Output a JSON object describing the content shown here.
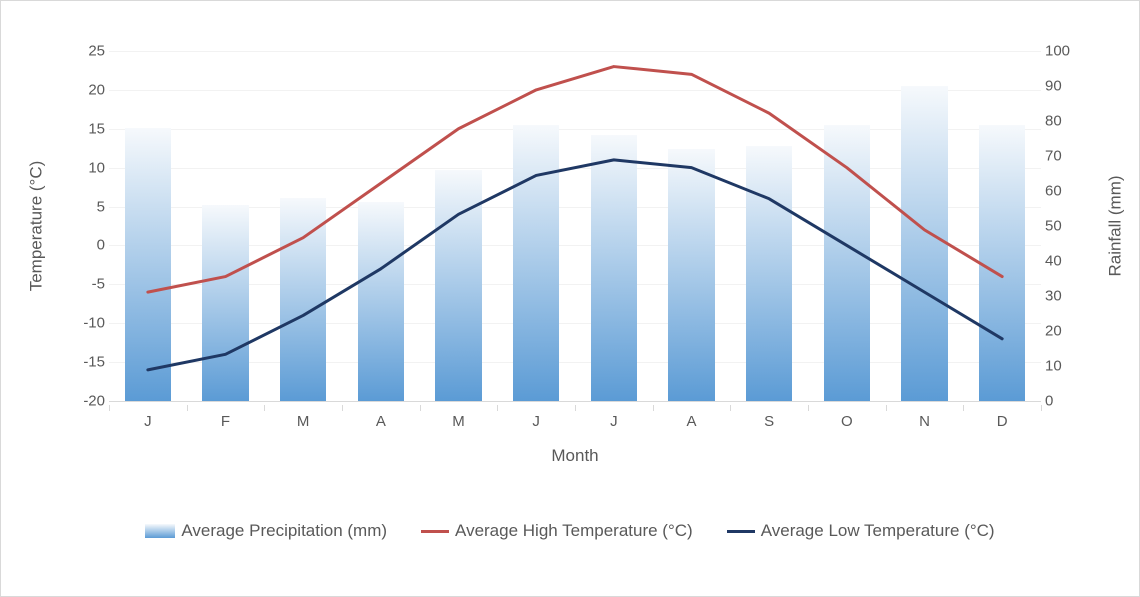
{
  "chart": {
    "type": "combo-bar-line",
    "background_color": "#ffffff",
    "border_color": "#d9d9d9",
    "grid_color": "#f2f2f2",
    "axis_line_color": "#d9d9d9",
    "font_family": "Segoe UI",
    "tick_fontsize": 15,
    "axis_title_fontsize": 17,
    "tick_color": "#595959",
    "x": {
      "title": "Month",
      "categories": [
        "J",
        "F",
        "M",
        "A",
        "M",
        "J",
        "J",
        "A",
        "S",
        "O",
        "N",
        "D"
      ]
    },
    "yLeft": {
      "title": "Temperature (°C)",
      "min": -20,
      "max": 25,
      "step": 5
    },
    "yRight": {
      "title": "Rainfall (mm)",
      "min": 0,
      "max": 100,
      "step": 10
    },
    "bars": {
      "name": "Average Precipitation (mm)",
      "axis": "right",
      "bar_width_ratio": 0.6,
      "gradient_top": "#f6f9fc",
      "gradient_bottom": "#5b9bd5",
      "values": [
        78,
        56,
        58,
        57,
        66,
        79,
        76,
        72,
        73,
        79,
        90,
        79
      ]
    },
    "lines": [
      {
        "name": "Average High Temperature (°C)",
        "axis": "left",
        "color": "#c0504d",
        "width": 3,
        "values": [
          -6,
          -4,
          1,
          8,
          15,
          20,
          23,
          22,
          17,
          10,
          2,
          -4
        ]
      },
      {
        "name": "Average Low Temperature (°C)",
        "axis": "left",
        "color": "#1f3864",
        "width": 3,
        "values": [
          -16,
          -14,
          -9,
          -3,
          4,
          9,
          11,
          10,
          6,
          0,
          -6,
          -12
        ]
      }
    ],
    "legend": {
      "position": "bottom",
      "items": [
        {
          "kind": "bar",
          "label": "Average Precipitation (mm)"
        },
        {
          "kind": "line",
          "color": "#c0504d",
          "label": "Average High Temperature (°C)"
        },
        {
          "kind": "line",
          "color": "#1f3864",
          "label": "Average Low Temperature (°C)"
        }
      ]
    }
  }
}
